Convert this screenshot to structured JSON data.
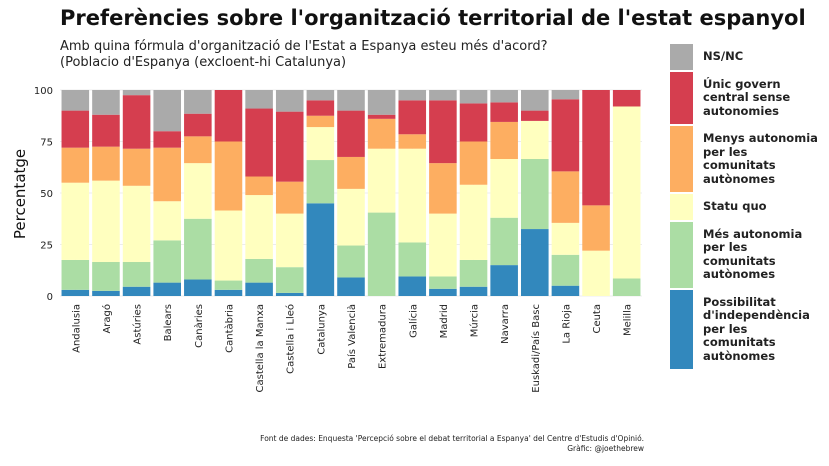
{
  "title": "Preferències sobre l'organització territorial de l'estat espanyol",
  "subtitle": {
    "line1": "Amb quina fórmula d'organització de l'Estat a Espanya esteu més d'acord?",
    "line2": "(Poblacio d'Espanya (excloent-hi Catalunya)"
  },
  "caption": {
    "line1": "Font de dades: Enquesta 'Percepció sobre el debat territorial a Espanya' del Centre d'Estudis d'Opinió.",
    "line2": "Gràfic: @joethebrew"
  },
  "legend": [
    {
      "key": "nsnc",
      "lines": [
        "NS/NC"
      ],
      "color": "#aaaaaa"
    },
    {
      "key": "unic",
      "lines": [
        "Únic govern",
        "central sense",
        "autonomies"
      ],
      "color": "#d53e4f"
    },
    {
      "key": "menys",
      "lines": [
        "Menys autonomia",
        "per les",
        "comunitats",
        "autònomes"
      ],
      "color": "#fdae61"
    },
    {
      "key": "statu",
      "lines": [
        "Statu quo"
      ],
      "color": "#ffffbf"
    },
    {
      "key": "mes",
      "lines": [
        "Més autonomia",
        "per les",
        "comunitats",
        "autònomes"
      ],
      "color": "#abdda4"
    },
    {
      "key": "indep",
      "lines": [
        "Possibilitat",
        "d'independència",
        "per les",
        "comunitats",
        "autònomes"
      ],
      "color": "#3288bd"
    }
  ],
  "chart_data": {
    "type": "bar",
    "stacked": true,
    "ylabel": "Percentatge",
    "xlabel": "",
    "ylim": [
      0,
      100
    ],
    "yticks": [
      0,
      25,
      50,
      75,
      100
    ],
    "grid": true,
    "legend_position": "right",
    "categories": [
      "Andalusia",
      "Aragó",
      "Astúries",
      "Balears",
      "Canàries",
      "Cantàbria",
      "Castella la Manxa",
      "Castella i Lleó",
      "Catalunya",
      "País Valencià",
      "Extremadura",
      "Galícia",
      "Madrid",
      "Múrcia",
      "Navarra",
      "Euskadi/País Basc",
      "La Rioja",
      "Ceuta",
      "Melilla"
    ],
    "series": [
      {
        "name": "Possibilitat d'independència per les comunitats autònomes",
        "color": "#3288bd",
        "values": [
          3,
          2.5,
          4.5,
          6.5,
          8,
          3,
          6.5,
          1.5,
          45,
          9,
          0,
          9.5,
          3.5,
          4.5,
          15,
          32.5,
          5,
          0,
          0
        ]
      },
      {
        "name": "Més autonomia per les comunitats autònomes",
        "color": "#abdda4",
        "values": [
          14.5,
          14,
          12,
          20.5,
          29.5,
          4.5,
          11.5,
          12.5,
          21,
          15.5,
          40.5,
          16.5,
          6,
          13,
          23,
          34,
          15,
          0,
          8.5
        ]
      },
      {
        "name": "Statu quo",
        "color": "#ffffbf",
        "values": [
          37.5,
          39.5,
          37,
          19,
          27,
          34,
          31,
          26,
          16,
          27.5,
          31,
          45.5,
          30.5,
          36.5,
          28.5,
          18.5,
          15.5,
          22,
          83.5
        ]
      },
      {
        "name": "Menys autonomia per les comunitats autònomes",
        "color": "#fdae61",
        "values": [
          17,
          16.5,
          18,
          26,
          13,
          33.5,
          9,
          15.5,
          5.5,
          15.5,
          14.5,
          7,
          24.5,
          21,
          18,
          0,
          25,
          22,
          0
        ]
      },
      {
        "name": "Únic govern central sense autonomies",
        "color": "#d53e4f",
        "values": [
          18,
          15.5,
          26,
          8,
          11,
          25,
          33,
          34,
          7.5,
          22.5,
          2,
          16.5,
          30.5,
          18.5,
          9.5,
          5,
          35,
          56,
          8
        ]
      },
      {
        "name": "NS/NC",
        "color": "#aaaaaa",
        "values": [
          10,
          12,
          2.5,
          20,
          11.5,
          0,
          9,
          10.5,
          5,
          10,
          12,
          5,
          5,
          6.5,
          6,
          10,
          4.5,
          0,
          0
        ]
      }
    ]
  }
}
